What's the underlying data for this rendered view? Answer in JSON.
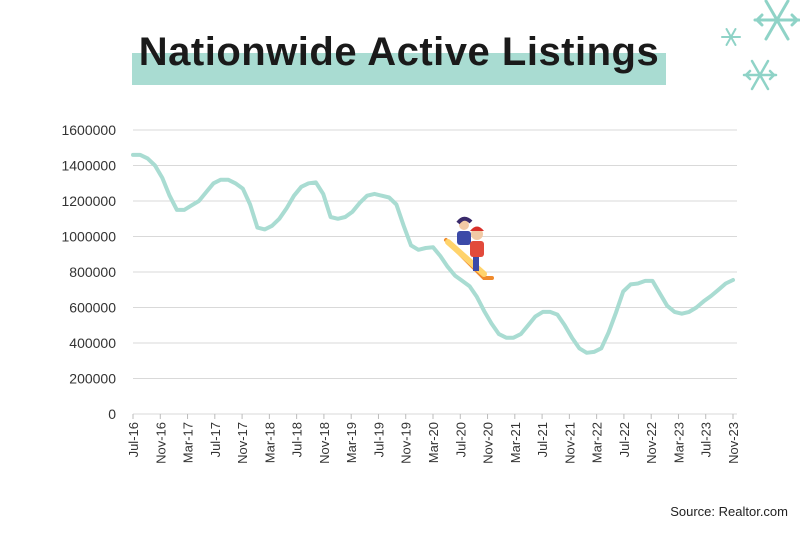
{
  "title": "Nationwide Active Listings",
  "source": "Source: Realtor.com",
  "colors": {
    "line": "#a9dcd2",
    "band": "#a9dcd2",
    "snowflake": "#8fd3c7"
  },
  "decorations": {
    "snowflake_icons": 3,
    "sled_icon": "children-on-sled-icon"
  },
  "chart_data": {
    "type": "line",
    "title": "Nationwide Active Listings",
    "xlabel": "",
    "ylabel": "",
    "ylim": [
      0,
      1600000
    ],
    "yticks": [
      0,
      200000,
      400000,
      600000,
      800000,
      1000000,
      1200000,
      1400000,
      1600000
    ],
    "ytick_labels": [
      "0",
      "200000",
      "400000",
      "600000",
      "800000",
      "1000000",
      "1200000",
      "1400000",
      "1600000"
    ],
    "xtick_labels": [
      "Jul-16",
      "Nov-16",
      "Mar-17",
      "Jul-17",
      "Nov-17",
      "Mar-18",
      "Jul-18",
      "Nov-18",
      "Mar-19",
      "Jul-19",
      "Nov-19",
      "Mar-20",
      "Jul-20",
      "Nov-20",
      "Mar-21",
      "Jul-21",
      "Nov-21",
      "Mar-22",
      "Jul-22",
      "Nov-22",
      "Mar-23",
      "Jul-23",
      "Nov-23"
    ],
    "grid": true,
    "series": [
      {
        "values": [
          1460000,
          1460000,
          1440000,
          1400000,
          1330000,
          1230000,
          1150000,
          1150000,
          1175000,
          1200000,
          1250000,
          1300000,
          1320000,
          1320000,
          1300000,
          1270000,
          1180000,
          1050000,
          1040000,
          1060000,
          1100000,
          1160000,
          1230000,
          1280000,
          1300000,
          1305000,
          1240000,
          1110000,
          1100000,
          1110000,
          1140000,
          1190000,
          1230000,
          1240000,
          1230000,
          1220000,
          1180000,
          1060000,
          950000,
          925000,
          935000,
          940000,
          890000,
          830000,
          780000,
          750000,
          720000,
          660000,
          580000,
          510000,
          450000,
          430000,
          430000,
          450000,
          500000,
          550000,
          575000,
          575000,
          560000,
          500000,
          430000,
          370000,
          345000,
          350000,
          370000,
          460000,
          570000,
          690000,
          730000,
          735000,
          750000,
          750000,
          680000,
          610000,
          575000,
          565000,
          575000,
          600000,
          635000,
          665000,
          700000,
          735000,
          755000
        ]
      }
    ]
  }
}
